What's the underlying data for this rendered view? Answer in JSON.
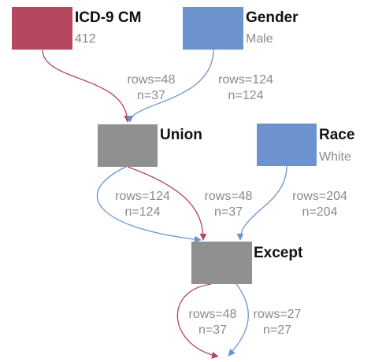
{
  "colors": {
    "icd": "#b5485e",
    "gender": "#6d93cf",
    "race": "#6d93cf",
    "op": "#909090",
    "edge_red": "#b5485e",
    "edge_blue": "#6d93cf",
    "label_text": "#111111",
    "sub_text": "#8a8a8a"
  },
  "nodes": {
    "icd9": {
      "label": "ICD-9 CM",
      "sub": "412"
    },
    "gender": {
      "label": "Gender",
      "sub": "Male"
    },
    "union": {
      "label": "Union"
    },
    "race": {
      "label": "Race",
      "sub": "White"
    },
    "except": {
      "label": "Except"
    }
  },
  "edges": {
    "icd_to_union": {
      "rows": "rows=48",
      "n": "n=37"
    },
    "gender_to_union": {
      "rows": "rows=124",
      "n": "n=124"
    },
    "union_to_except_blue": {
      "rows": "rows=124",
      "n": "n=124"
    },
    "union_to_except_red": {
      "rows": "rows=48",
      "n": "n=37"
    },
    "race_to_except": {
      "rows": "rows=204",
      "n": "n=204"
    },
    "except_out_red": {
      "rows": "rows=48",
      "n": "n=37"
    },
    "except_out_blue": {
      "rows": "rows=27",
      "n": "n=27"
    }
  }
}
